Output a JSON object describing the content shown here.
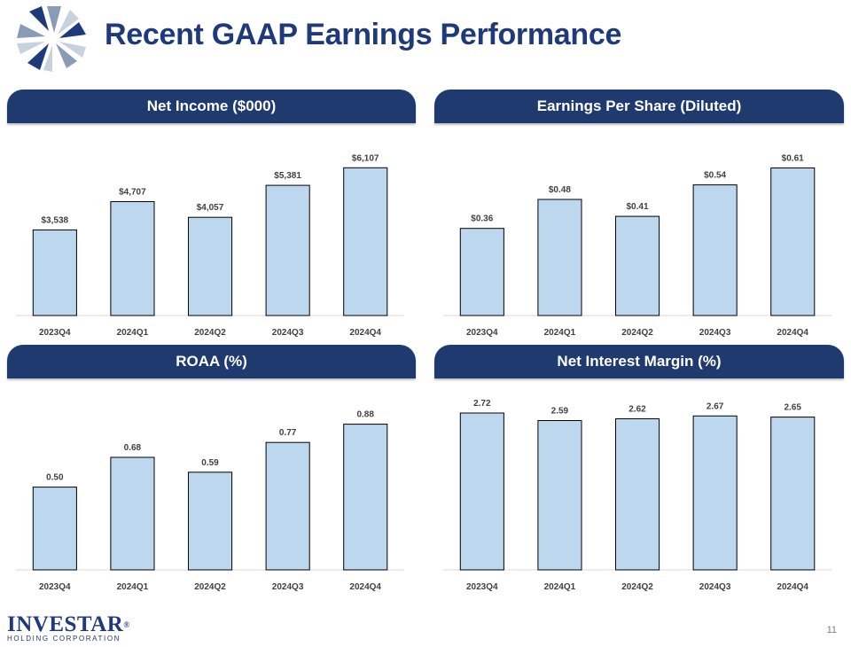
{
  "header": {
    "title": "Recent GAAP Earnings Performance"
  },
  "footer": {
    "brand": "INVESTAR",
    "registered": "®",
    "subtitle": "HOLDING CORPORATION",
    "page_number": "11"
  },
  "colors": {
    "bar_fill": "#bdd7ee",
    "header_bg": "#1f3a6e",
    "title": "#1f3a7a"
  },
  "chart_data": [
    {
      "type": "bar",
      "title": "Net Income ($000)",
      "categories": [
        "2023Q4",
        "2024Q1",
        "2024Q2",
        "2024Q3",
        "2024Q4"
      ],
      "values": [
        3538,
        4707,
        4057,
        5381,
        6107
      ],
      "labels": [
        "$3,538",
        "$4,707",
        "$4,057",
        "$5,381",
        "$6,107"
      ],
      "ylim": [
        0,
        6300
      ],
      "xlabel": "",
      "ylabel": ""
    },
    {
      "type": "bar",
      "title": "Earnings Per Share (Diluted)",
      "categories": [
        "2023Q4",
        "2024Q1",
        "2024Q2",
        "2024Q3",
        "2024Q4"
      ],
      "values": [
        0.36,
        0.48,
        0.41,
        0.54,
        0.61
      ],
      "labels": [
        "$0.36",
        "$0.48",
        "$0.41",
        "$0.54",
        "$0.61"
      ],
      "ylim": [
        0,
        0.63
      ],
      "xlabel": "",
      "ylabel": ""
    },
    {
      "type": "bar",
      "title": "ROAA (%)",
      "categories": [
        "2023Q4",
        "2024Q1",
        "2024Q2",
        "2024Q3",
        "2024Q4"
      ],
      "values": [
        0.5,
        0.68,
        0.59,
        0.77,
        0.88
      ],
      "labels": [
        "0.50",
        "0.68",
        "0.59",
        "0.77",
        "0.88"
      ],
      "ylim": [
        0,
        0.91
      ],
      "xlabel": "",
      "ylabel": ""
    },
    {
      "type": "bar",
      "title": "Net Interest Margin (%)",
      "categories": [
        "2023Q4",
        "2024Q1",
        "2024Q2",
        "2024Q3",
        "2024Q4"
      ],
      "values": [
        2.72,
        2.59,
        2.62,
        2.67,
        2.65
      ],
      "labels": [
        "2.72",
        "2.59",
        "2.62",
        "2.67",
        "2.65"
      ],
      "ylim": [
        0,
        2.72
      ],
      "xlabel": "",
      "ylabel": ""
    }
  ]
}
